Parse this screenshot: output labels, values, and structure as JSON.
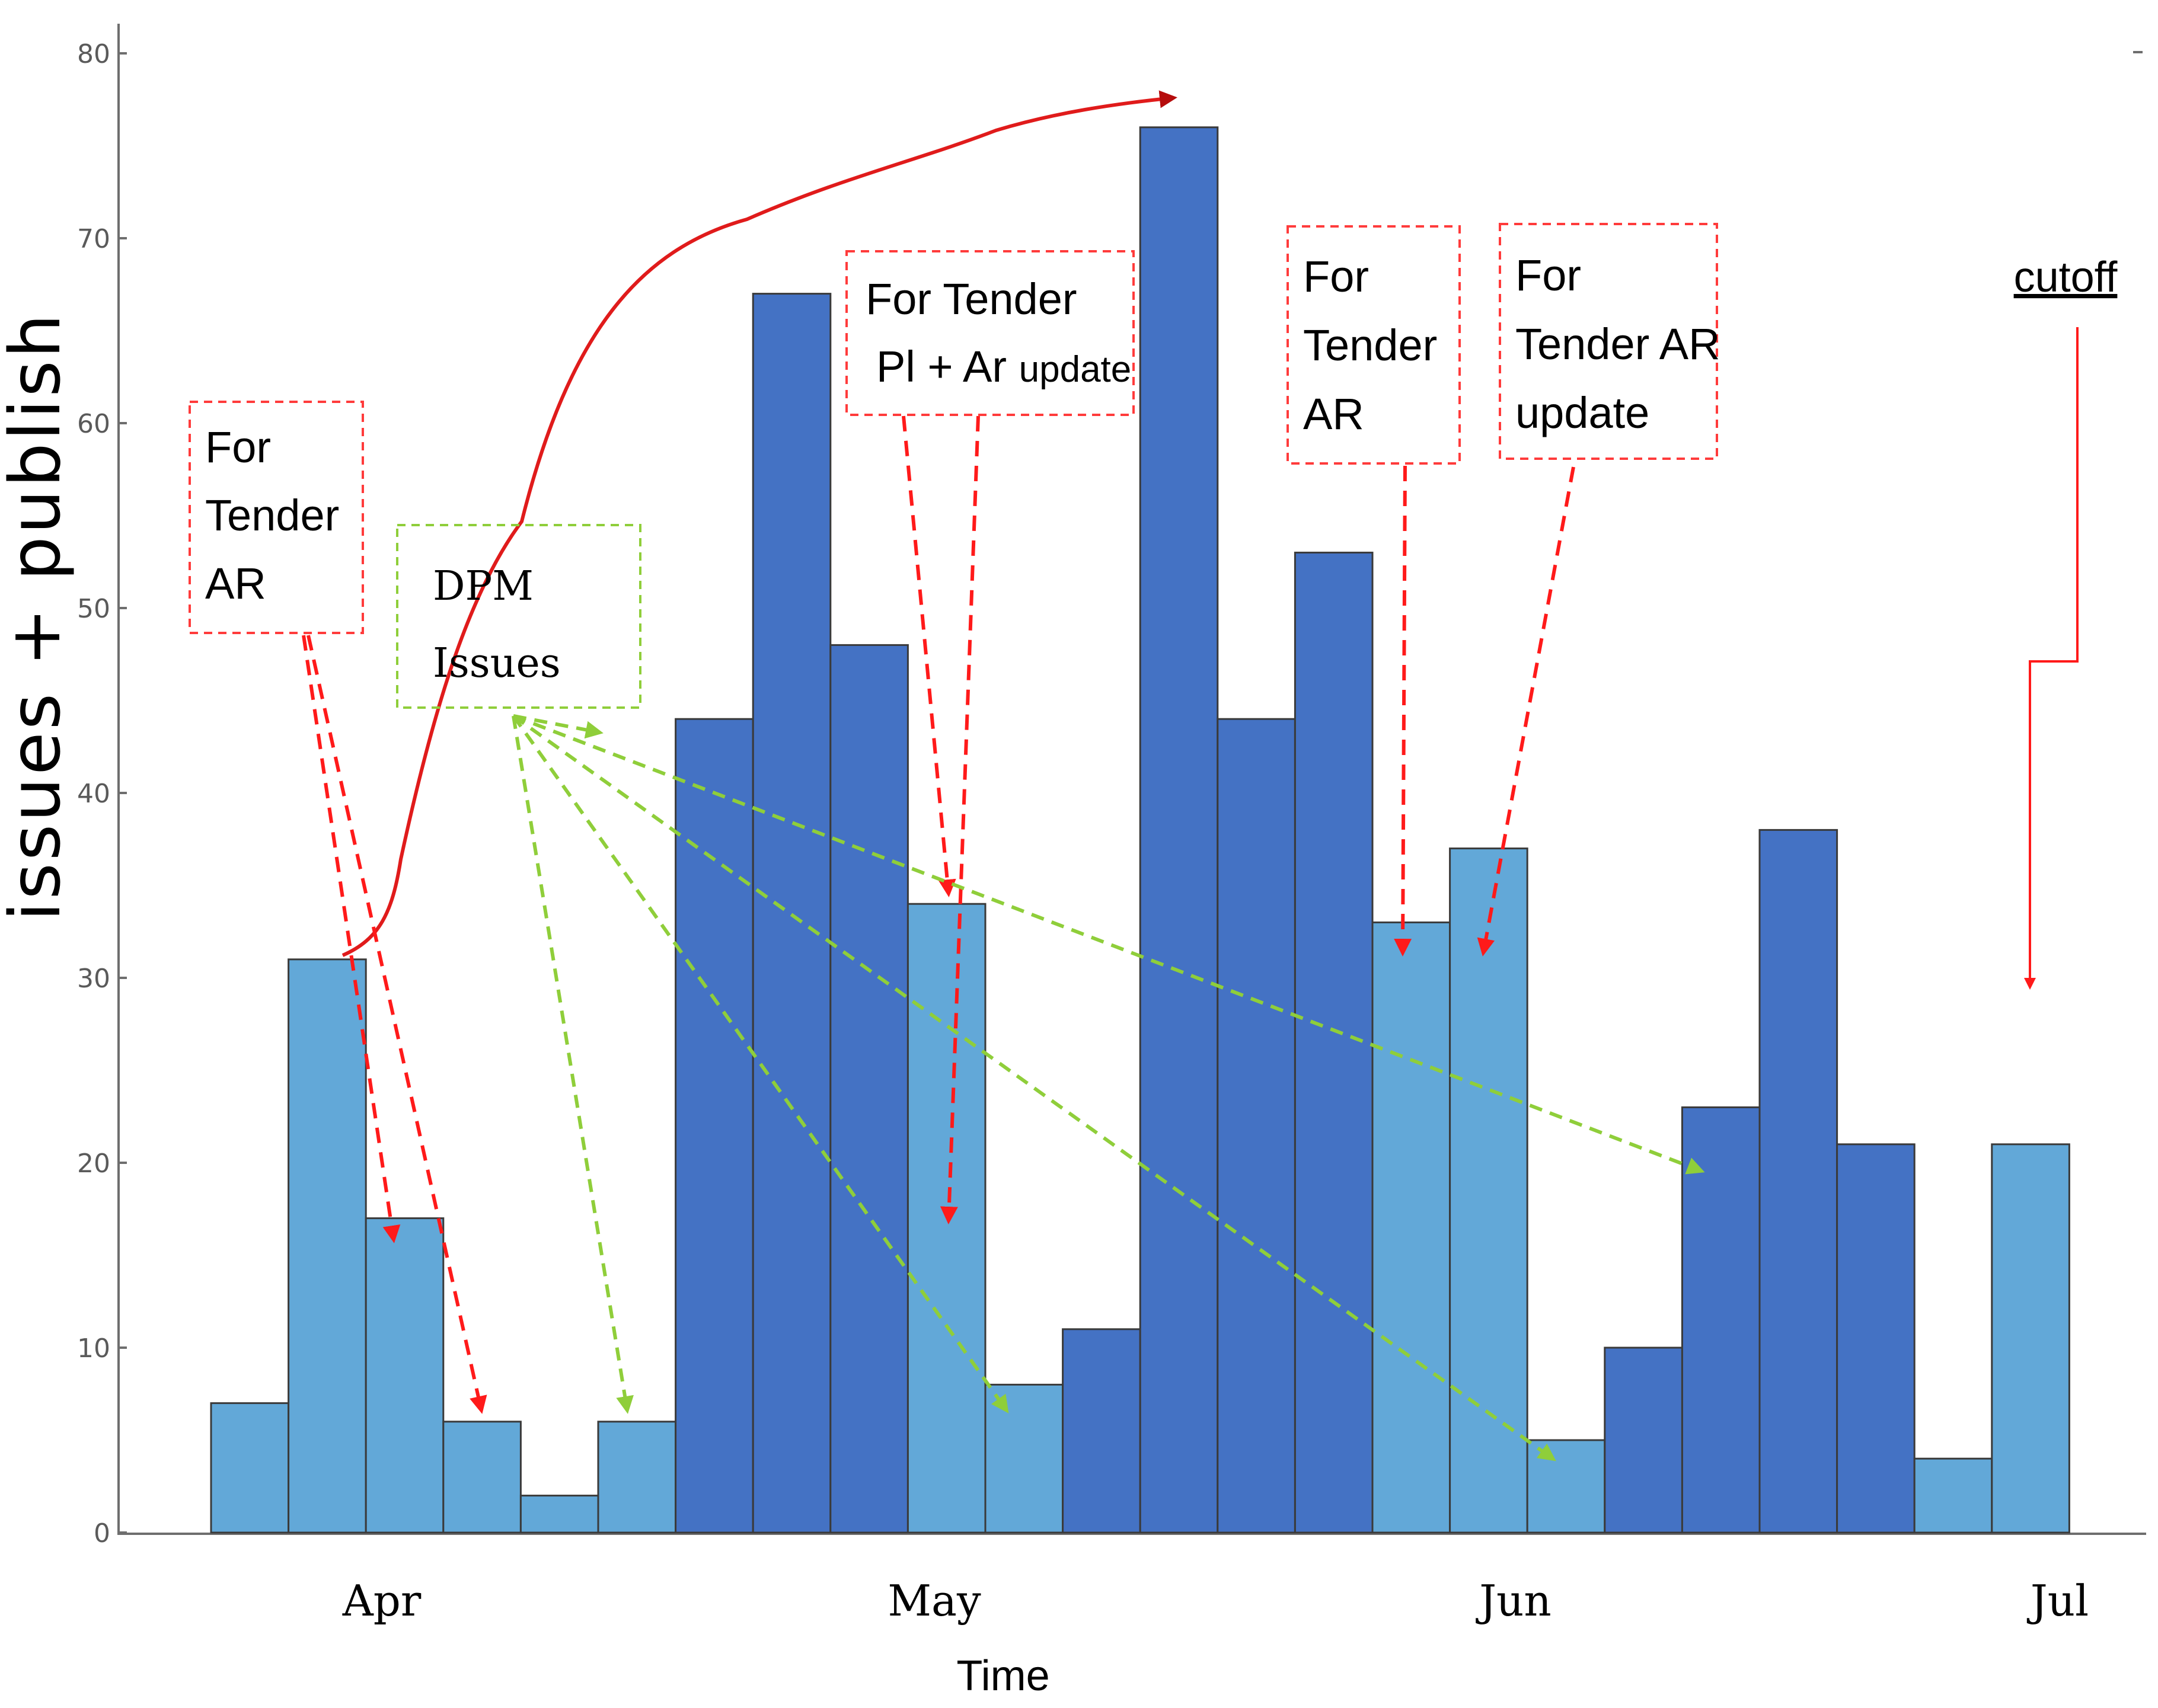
{
  "chart_data": {
    "type": "bar",
    "title": "",
    "xlabel": "Time",
    "ylabel": "issues + publish",
    "ylim": [
      0,
      80
    ],
    "yticks": [
      0,
      10,
      20,
      30,
      40,
      50,
      60,
      70,
      80
    ],
    "month_labels": [
      "Apr",
      "May",
      "Jun",
      "Jul"
    ],
    "series": [
      {
        "name": "light bars",
        "color": "#62a8d8"
      },
      {
        "name": "dark bars",
        "color": "#4472c4"
      }
    ],
    "bars": [
      {
        "value": 7,
        "series": "light"
      },
      {
        "value": 31,
        "series": "light"
      },
      {
        "value": 17,
        "series": "light"
      },
      {
        "value": 6,
        "series": "light"
      },
      {
        "value": 2,
        "series": "light"
      },
      {
        "value": 6,
        "series": "light"
      },
      {
        "value": 44,
        "series": "dark"
      },
      {
        "value": 67,
        "series": "dark"
      },
      {
        "value": 48,
        "series": "dark"
      },
      {
        "value": 34,
        "series": "light"
      },
      {
        "value": 8,
        "series": "light"
      },
      {
        "value": 11,
        "series": "dark"
      },
      {
        "value": 76,
        "series": "dark"
      },
      {
        "value": 44,
        "series": "dark"
      },
      {
        "value": 53,
        "series": "dark"
      },
      {
        "value": 33,
        "series": "light"
      },
      {
        "value": 37,
        "series": "light"
      },
      {
        "value": 5,
        "series": "light"
      },
      {
        "value": 10,
        "series": "dark"
      },
      {
        "value": 23,
        "series": "dark"
      },
      {
        "value": 38,
        "series": "dark"
      },
      {
        "value": 21,
        "series": "dark"
      },
      {
        "value": 4,
        "series": "light"
      },
      {
        "value": 21,
        "series": "light"
      }
    ],
    "annotations": {
      "note_1": [
        "For",
        "Tender",
        "AR"
      ],
      "note_2": [
        "DPM",
        "Issues"
      ],
      "note_3_line1": "For Tender",
      "note_3_line2_a": "Pl + Ar",
      "note_3_line2_b": "update",
      "note_4": [
        "For",
        "Tender",
        "AR"
      ],
      "note_5": [
        "For",
        "Tender AR",
        "update"
      ],
      "cutoff": "cutoff"
    }
  },
  "colors": {
    "light": "#62a8d8",
    "dark": "#4472c4",
    "annotation_red": "#ff1a1a",
    "annotation_green": "#8fce3a",
    "trend_red": "#e01b1b"
  }
}
